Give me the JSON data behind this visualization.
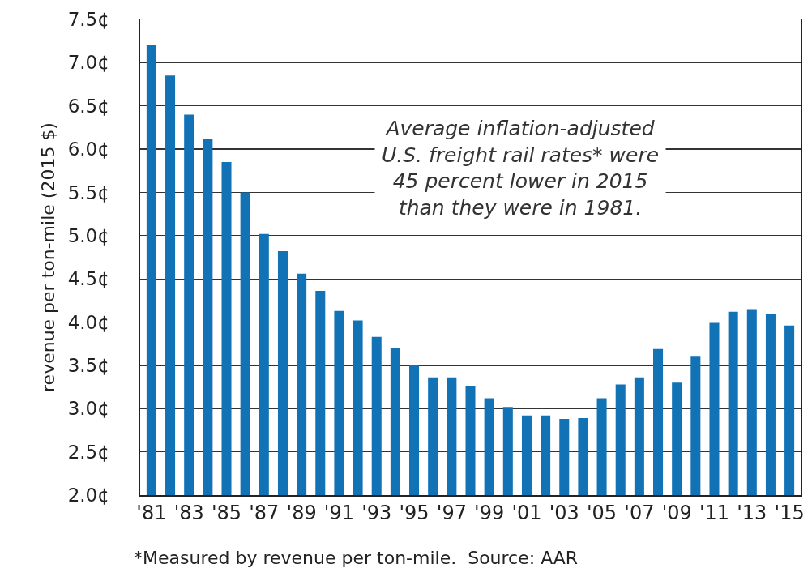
{
  "chart_data": {
    "type": "bar",
    "categories": [
      "'81",
      null,
      "'83",
      null,
      "'85",
      null,
      "'87",
      null,
      "'89",
      null,
      "'91",
      null,
      "'93",
      null,
      "'95",
      null,
      "'97",
      null,
      "'99",
      null,
      "'01",
      null,
      "'03",
      null,
      "'05",
      null,
      "'07",
      null,
      "'09",
      null,
      "'11",
      null,
      "'13",
      null,
      "'15"
    ],
    "values": [
      7.2,
      6.85,
      6.4,
      6.12,
      5.85,
      5.5,
      5.02,
      4.82,
      4.56,
      4.36,
      4.13,
      4.02,
      3.83,
      3.7,
      3.5,
      3.36,
      3.36,
      3.26,
      3.12,
      3.02,
      2.92,
      2.92,
      2.88,
      2.89,
      3.12,
      3.28,
      3.36,
      3.69,
      3.3,
      3.61,
      3.99,
      4.12,
      4.15,
      4.09,
      3.96
    ],
    "color": "#1272b6",
    "ylabel": "revenue per ton-mile (2015 $)",
    "ylim": [
      2.0,
      7.5
    ],
    "yticks": [
      {
        "value": 2.0,
        "label": "2.0¢"
      },
      {
        "value": 2.5,
        "label": "2.5¢"
      },
      {
        "value": 3.0,
        "label": "3.0¢"
      },
      {
        "value": 3.5,
        "label": "3.5¢"
      },
      {
        "value": 4.0,
        "label": "4.0¢"
      },
      {
        "value": 4.5,
        "label": "4.5¢"
      },
      {
        "value": 5.0,
        "label": "5.0¢"
      },
      {
        "value": 5.5,
        "label": "5.5¢"
      },
      {
        "value": 6.0,
        "label": "6.0¢"
      },
      {
        "value": 6.5,
        "label": "6.5¢"
      },
      {
        "value": 7.0,
        "label": "7.0¢"
      },
      {
        "value": 7.5,
        "label": "7.5¢"
      }
    ],
    "grid": "y",
    "annotations": [
      "Average inflation-adjusted\nU.S. freight rail rates* were\n45 percent lower in 2015\nthan they were in 1981.",
      "*Measured by revenue per ton-mile.  Source: AAR"
    ]
  }
}
